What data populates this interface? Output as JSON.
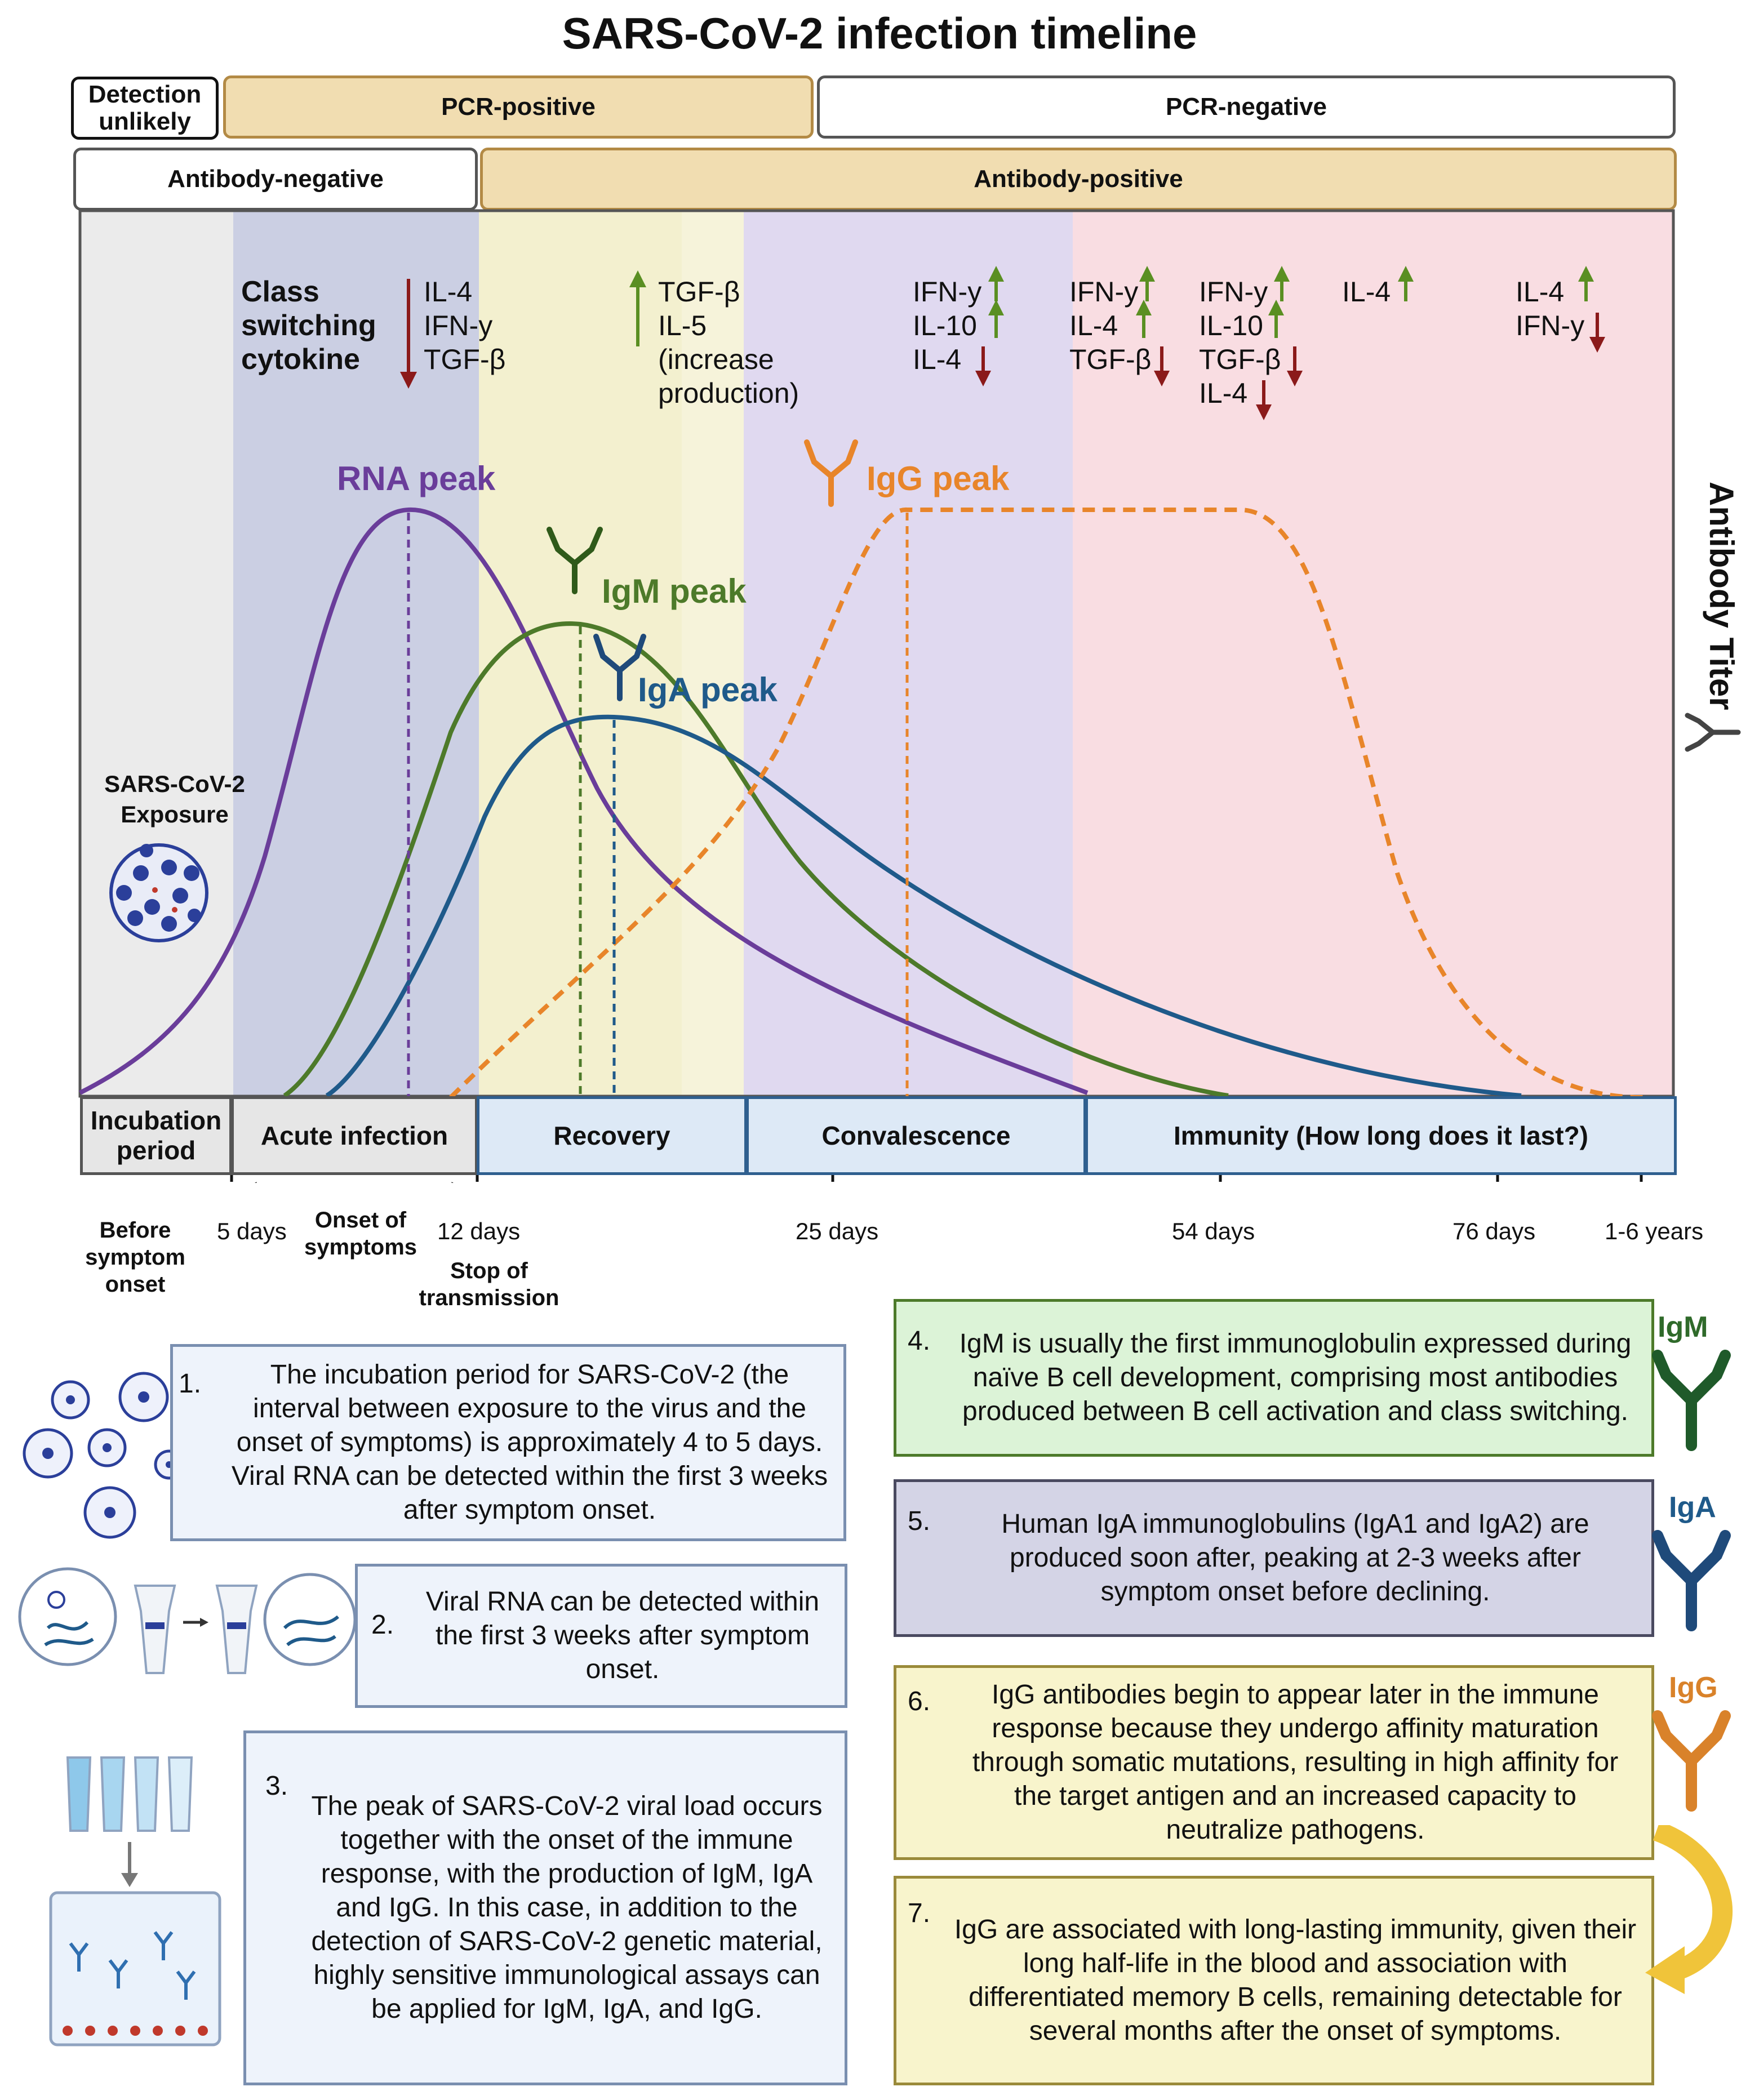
{
  "title": "SARS-CoV-2 infection timeline",
  "bands": {
    "detection_unlikely": "Detection unlikely",
    "pcr_positive": "PCR-positive",
    "pcr_negative": "PCR-negative",
    "antibody_negative": "Antibody-negative",
    "antibody_positive": "Antibody-positive"
  },
  "y_axis_label": "Antibody Titer",
  "exposure_label": "SARS-CoV-2 Exposure",
  "cytokines": {
    "title": "Class switching cytokine",
    "group1": [
      "IL-4",
      "IFN-y",
      "TGF-β"
    ],
    "group2": [
      "TGF-β",
      "IL-5",
      "(increase",
      "production)"
    ],
    "group3": [
      "IFN-y",
      "IL-10",
      "IL-4"
    ],
    "group4": [
      "IFN-y",
      "IL-4",
      "TGF-β"
    ],
    "group5": [
      "IFN-y",
      "IL-10",
      "TGF-β",
      "IL-4"
    ],
    "group6": [
      "IL-4"
    ],
    "group7": [
      "IL-4",
      "IFN-y"
    ]
  },
  "peaks": {
    "rna": "RNA peak",
    "igm": "IgM peak",
    "iga": "IgA peak",
    "igg": "IgG peak"
  },
  "phases": {
    "incubation": "Incubation period",
    "acute": "Acute infection",
    "recovery": "Recovery",
    "convalescence": "Convalescence",
    "immunity": "Immunity (How long does it last?)"
  },
  "ticks": {
    "before": "Before symptom onset",
    "five_days": "5 days",
    "onset": "Onset of symptoms",
    "twelve_days": "12 days",
    "stop": "Stop of transmission",
    "twentyfive": "25 days",
    "fiftyfour": "54 days",
    "seventysix": "76 days",
    "years": "1-6 years"
  },
  "notes": {
    "n1": {
      "num": "1.",
      "text": "The incubation period for SARS-CoV-2 (the interval between exposure to the virus and the onset of symptoms) is approximately 4 to 5 days. Viral RNA can be detected within the first 3 weeks after symptom onset."
    },
    "n2": {
      "num": "2.",
      "text": "Viral RNA can be detected within the first 3 weeks after symptom onset."
    },
    "n3": {
      "num": "3.",
      "text": "The peak of SARS-CoV-2 viral load occurs together with the onset of the immune response, with the production of IgM, IgA and IgG. In this case, in addition to the detection of SARS-CoV-2 genetic material, highly sensitive immunological assays can be applied for IgM, IgA, and IgG."
    },
    "n4": {
      "num": "4.",
      "text": "IgM is usually the first immunoglobulin expressed during naïve B cell development, comprising most antibodies produced between B cell activation and class switching."
    },
    "n5": {
      "num": "5.",
      "text": "Human IgA immunoglobulins (IgA1 and IgA2) are produced soon after, peaking at 2-3 weeks after symptom onset before declining."
    },
    "n6": {
      "num": "6.",
      "text": "IgG antibodies begin to appear later in the immune response because they undergo affinity maturation through somatic mutations, resulting in high affinity for the target antigen and an increased capacity to neutralize pathogens."
    },
    "n7": {
      "num": "7.",
      "text": "IgG are associated with long-lasting immunity, given their long half-life in the blood and association with differentiated memory B cells, remaining detectable for several months after the onset of symptoms."
    }
  },
  "side_labels": {
    "igm": "IgM",
    "iga": "IgA",
    "igg": "IgG"
  },
  "colors": {
    "rna": "#6a3d9a",
    "igm": "#4d7a2a",
    "iga": "#1f5a8a",
    "igg": "#e8852a",
    "arrow_up": "#5a8f22",
    "arrow_down": "#8b1a1a"
  }
}
